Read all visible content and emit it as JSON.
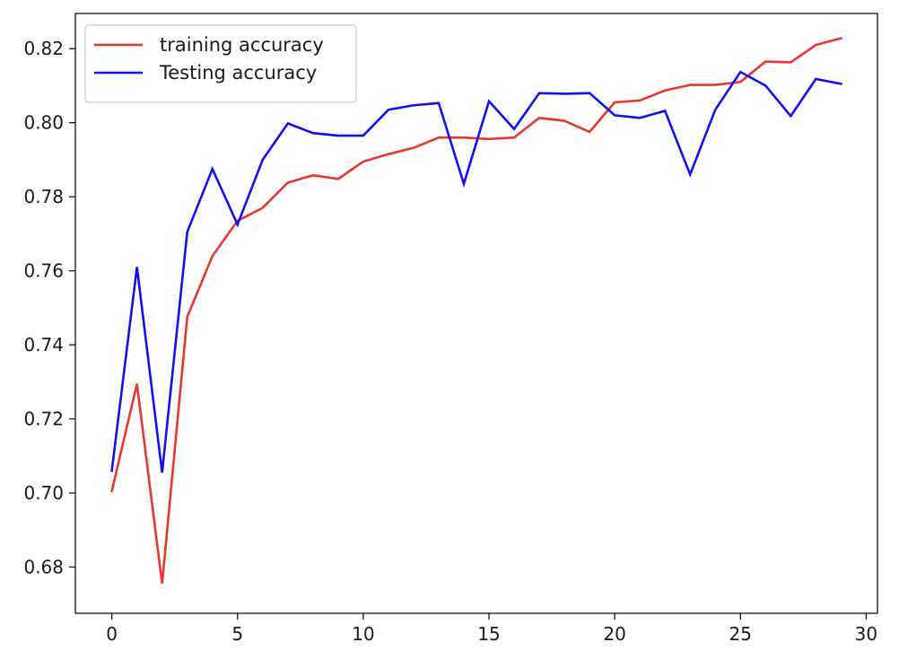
{
  "chart_data": {
    "type": "line",
    "title": "",
    "xlabel": "",
    "ylabel": "",
    "xlim": [
      -1.45,
      30.45
    ],
    "ylim": [
      0.6675,
      0.8295
    ],
    "x_ticks": [
      0,
      5,
      10,
      15,
      20,
      25,
      30
    ],
    "y_ticks": [
      0.68,
      0.7,
      0.72,
      0.74,
      0.76,
      0.78,
      0.8,
      0.82
    ],
    "x_tick_labels": [
      "0",
      "5",
      "10",
      "15",
      "20",
      "25",
      "30"
    ],
    "y_tick_labels": [
      "0.68",
      "0.70",
      "0.72",
      "0.74",
      "0.76",
      "0.78",
      "0.80",
      "0.82"
    ],
    "grid": false,
    "legend_position": "top-left",
    "x": [
      0,
      1,
      2,
      3,
      4,
      5,
      6,
      7,
      8,
      9,
      10,
      11,
      12,
      13,
      14,
      15,
      16,
      17,
      18,
      19,
      20,
      21,
      22,
      23,
      24,
      25,
      26,
      27,
      28,
      29
    ],
    "series": [
      {
        "name": "training accuracy",
        "color": "#e8362e",
        "values": [
          0.7005,
          0.7295,
          0.6755,
          0.7475,
          0.764,
          0.7735,
          0.777,
          0.7838,
          0.7858,
          0.7848,
          0.7895,
          0.7915,
          0.7932,
          0.796,
          0.796,
          0.7956,
          0.796,
          0.8013,
          0.8005,
          0.7975,
          0.8055,
          0.806,
          0.8087,
          0.8102,
          0.8102,
          0.811,
          0.8165,
          0.8163,
          0.821,
          0.8228
        ]
      },
      {
        "name": "Testing accuracy",
        "color": "#1010f0",
        "values": [
          0.706,
          0.761,
          0.7055,
          0.7705,
          0.7875,
          0.7725,
          0.79,
          0.7998,
          0.7972,
          0.7965,
          0.7965,
          0.8035,
          0.8047,
          0.8053,
          0.7835,
          0.8058,
          0.7983,
          0.808,
          0.8078,
          0.808,
          0.802,
          0.8013,
          0.8032,
          0.786,
          0.8035,
          0.8137,
          0.81,
          0.8018,
          0.8118,
          0.8105
        ]
      }
    ]
  }
}
